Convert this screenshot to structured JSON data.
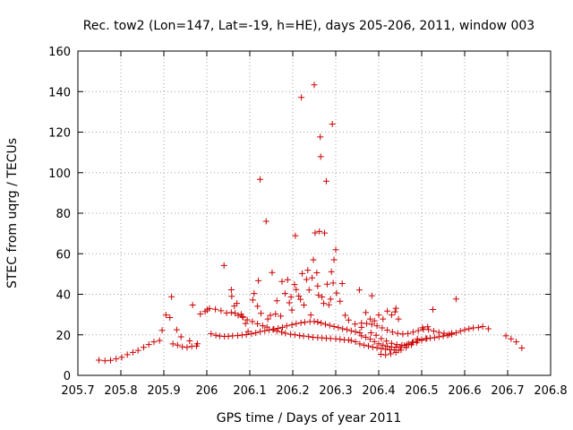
{
  "chart_data": {
    "type": "scatter",
    "title": "Rec. tow2 (Lon=147, Lat=-19, h=HE), days 205-206, 2011, window 003",
    "xlabel": "GPS time / Days of year 2011",
    "ylabel": "STEC from uqrg / TECUs",
    "xlim": [
      205.7,
      206.8
    ],
    "ylim": [
      0,
      160
    ],
    "grid": true,
    "marker": "+",
    "xticks": [
      205.7,
      205.8,
      205.9,
      206,
      206.1,
      206.2,
      206.3,
      206.4,
      206.5,
      206.6,
      206.7,
      206.8
    ],
    "xtick_labels": [
      "205.7",
      "205.8",
      "205.9",
      "206",
      "206.1",
      "206.2",
      "206.3",
      "206.4",
      "206.5",
      "206.6",
      "206.7",
      "206.8"
    ],
    "yticks": [
      0,
      20,
      40,
      60,
      80,
      100,
      120,
      140,
      160
    ],
    "ytick_labels": [
      "0",
      "20",
      "40",
      "60",
      "80",
      "100",
      "120",
      "140",
      "160"
    ],
    "series": [
      {
        "name": "STEC",
        "color": "#cc0000",
        "points": [
          [
            205.749,
            7.5
          ],
          [
            205.763,
            7.2
          ],
          [
            205.776,
            7.4
          ],
          [
            205.789,
            8.1
          ],
          [
            205.802,
            8.9
          ],
          [
            205.815,
            10.2
          ],
          [
            205.828,
            11.3
          ],
          [
            205.84,
            12.3
          ],
          [
            205.853,
            13.8
          ],
          [
            205.865,
            15.2
          ],
          [
            205.877,
            16.5
          ],
          [
            205.89,
            17.2
          ],
          [
            205.896,
            22.2
          ],
          [
            205.905,
            29.8
          ],
          [
            205.914,
            28.5
          ],
          [
            205.918,
            38.8
          ],
          [
            205.921,
            15.5
          ],
          [
            205.932,
            14.9
          ],
          [
            205.943,
            14.1
          ],
          [
            205.954,
            13.8
          ],
          [
            205.965,
            14.3
          ],
          [
            205.967,
            34.7
          ],
          [
            205.976,
            14.5
          ],
          [
            205.985,
            30.3
          ],
          [
            205.996,
            31.5
          ],
          [
            205.94,
            19.0
          ],
          [
            205.93,
            22.5
          ],
          [
            205.96,
            17.0
          ],
          [
            205.978,
            15.6
          ],
          [
            206.001,
            32.3
          ],
          [
            206.01,
            20.5
          ],
          [
            206.021,
            19.8
          ],
          [
            206.03,
            19.4
          ],
          [
            206.041,
            19.2
          ],
          [
            206.05,
            19.3
          ],
          [
            206.06,
            19.5
          ],
          [
            206.072,
            19.6
          ],
          [
            206.082,
            19.9
          ],
          [
            206.092,
            20.1
          ],
          [
            206.104,
            20.5
          ],
          [
            206.114,
            21.0
          ],
          [
            206.124,
            21.6
          ],
          [
            206.135,
            22.0
          ],
          [
            206.145,
            22.4
          ],
          [
            206.156,
            22.8
          ],
          [
            206.166,
            23.2
          ],
          [
            206.176,
            23.7
          ],
          [
            206.186,
            24.4
          ],
          [
            206.198,
            24.9
          ],
          [
            206.208,
            25.5
          ],
          [
            206.219,
            25.9
          ],
          [
            206.228,
            26.2
          ],
          [
            206.24,
            26.5
          ],
          [
            206.25,
            26.6
          ],
          [
            206.258,
            26.3
          ],
          [
            206.266,
            25.8
          ],
          [
            206.276,
            25.2
          ],
          [
            206.286,
            24.7
          ],
          [
            206.296,
            24.1
          ],
          [
            206.306,
            23.6
          ],
          [
            206.316,
            23.0
          ],
          [
            206.326,
            22.6
          ],
          [
            206.336,
            22.0
          ],
          [
            206.346,
            21.5
          ],
          [
            206.356,
            21.0
          ],
          [
            206.006,
            33.0
          ],
          [
            206.02,
            32.6
          ],
          [
            206.033,
            31.9
          ],
          [
            206.046,
            30.8
          ],
          [
            206.057,
            31.0
          ],
          [
            206.066,
            30.6
          ],
          [
            206.073,
            29.6
          ],
          [
            206.084,
            28.6
          ],
          [
            206.094,
            27.4
          ],
          [
            206.106,
            26.5
          ],
          [
            206.118,
            25.4
          ],
          [
            206.13,
            24.5
          ],
          [
            206.14,
            23.8
          ],
          [
            206.154,
            22.6
          ],
          [
            206.163,
            21.8
          ],
          [
            206.174,
            21.3
          ],
          [
            206.183,
            20.8
          ],
          [
            206.195,
            20.3
          ],
          [
            206.205,
            20.0
          ],
          [
            206.216,
            19.6
          ],
          [
            206.225,
            19.4
          ],
          [
            206.237,
            19.1
          ],
          [
            206.247,
            18.8
          ],
          [
            206.258,
            18.6
          ],
          [
            206.268,
            18.5
          ],
          [
            206.278,
            18.3
          ],
          [
            206.288,
            18.2
          ],
          [
            206.3,
            18.0
          ],
          [
            206.31,
            17.8
          ],
          [
            206.32,
            17.5
          ],
          [
            206.33,
            17.4
          ],
          [
            206.04,
            54.2
          ],
          [
            206.058,
            39.0
          ],
          [
            206.057,
            42.2
          ],
          [
            206.064,
            34.2
          ],
          [
            206.07,
            35.5
          ],
          [
            206.08,
            30.1
          ],
          [
            206.083,
            29.0
          ],
          [
            206.09,
            25.6
          ],
          [
            206.096,
            21.6
          ],
          [
            206.107,
            37.2
          ],
          [
            206.11,
            40.4
          ],
          [
            206.118,
            34.1
          ],
          [
            206.12,
            46.7
          ],
          [
            206.124,
            96.7
          ],
          [
            206.126,
            30.6
          ],
          [
            206.138,
            76.0
          ],
          [
            206.142,
            27.8
          ],
          [
            206.148,
            29.6
          ],
          [
            206.152,
            50.7
          ],
          [
            206.16,
            30.3
          ],
          [
            206.163,
            36.8
          ],
          [
            206.172,
            29.2
          ],
          [
            206.175,
            46.3
          ],
          [
            206.182,
            40.4
          ],
          [
            206.188,
            47.2
          ],
          [
            206.192,
            35.8
          ],
          [
            206.196,
            38.7
          ],
          [
            206.198,
            32.2
          ],
          [
            206.204,
            44.8
          ],
          [
            206.206,
            68.9
          ],
          [
            206.208,
            42.3
          ],
          [
            206.214,
            39.1
          ],
          [
            206.218,
            37.5
          ],
          [
            206.22,
            137.1
          ],
          [
            206.222,
            50.2
          ],
          [
            206.226,
            34.7
          ],
          [
            206.232,
            47.3
          ],
          [
            206.235,
            51.9
          ],
          [
            206.238,
            42.1
          ],
          [
            206.242,
            29.8
          ],
          [
            206.245,
            48.1
          ],
          [
            206.248,
            57.0
          ],
          [
            206.25,
            143.3
          ],
          [
            206.252,
            70.3
          ],
          [
            206.256,
            50.6
          ],
          [
            206.258,
            44.1
          ],
          [
            206.26,
            39.6
          ],
          [
            206.262,
            71.0
          ],
          [
            206.264,
            117.6
          ],
          [
            206.265,
            107.9
          ],
          [
            206.268,
            38.7
          ],
          [
            206.272,
            35.5
          ],
          [
            206.274,
            70.2
          ],
          [
            206.278,
            95.8
          ],
          [
            206.28,
            45.0
          ],
          [
            206.284,
            34.8
          ],
          [
            206.288,
            37.6
          ],
          [
            206.29,
            51.1
          ],
          [
            206.292,
            124.0
          ],
          [
            206.294,
            45.6
          ],
          [
            206.296,
            57.0
          ],
          [
            206.3,
            62.0
          ],
          [
            206.302,
            40.6
          ],
          [
            206.31,
            36.6
          ],
          [
            206.315,
            45.3
          ],
          [
            206.322,
            29.6
          ],
          [
            206.33,
            27.3
          ],
          [
            206.345,
            25.3
          ],
          [
            206.355,
            42.1
          ],
          [
            206.36,
            23.7
          ],
          [
            206.37,
            31.0
          ],
          [
            206.38,
            27.8
          ],
          [
            206.384,
            39.3
          ],
          [
            206.39,
            26.9
          ],
          [
            206.4,
            29.8
          ],
          [
            206.41,
            27.8
          ],
          [
            206.42,
            31.7
          ],
          [
            206.43,
            29.8
          ],
          [
            206.438,
            31.3
          ],
          [
            206.44,
            33.1
          ],
          [
            206.446,
            27.8
          ],
          [
            206.336,
            17.2
          ],
          [
            206.346,
            16.6
          ],
          [
            206.356,
            15.5
          ],
          [
            206.366,
            14.9
          ],
          [
            206.376,
            14.5
          ],
          [
            206.386,
            13.9
          ],
          [
            206.396,
            13.6
          ],
          [
            206.406,
            13.2
          ],
          [
            206.416,
            12.9
          ],
          [
            206.426,
            12.6
          ],
          [
            206.436,
            12.5
          ],
          [
            206.446,
            12.4
          ],
          [
            206.36,
            19.5
          ],
          [
            206.37,
            18.8
          ],
          [
            206.38,
            17.9
          ],
          [
            206.39,
            16.7
          ],
          [
            206.4,
            15.6
          ],
          [
            206.41,
            14.9
          ],
          [
            206.42,
            14.3
          ],
          [
            206.43,
            14.0
          ],
          [
            206.44,
            13.9
          ],
          [
            206.45,
            14.1
          ],
          [
            206.46,
            14.8
          ],
          [
            206.47,
            15.5
          ],
          [
            206.48,
            16.4
          ],
          [
            206.49,
            17.1
          ],
          [
            206.5,
            17.7
          ],
          [
            206.51,
            18.2
          ],
          [
            206.52,
            18.4
          ],
          [
            206.53,
            18.6
          ],
          [
            206.54,
            19.0
          ],
          [
            206.55,
            19.4
          ],
          [
            206.56,
            19.8
          ],
          [
            206.57,
            20.3
          ],
          [
            206.58,
            21.0
          ],
          [
            206.59,
            21.8
          ],
          [
            206.6,
            22.5
          ],
          [
            206.61,
            23.0
          ],
          [
            206.62,
            23.4
          ],
          [
            206.632,
            23.6
          ],
          [
            206.642,
            24.1
          ],
          [
            206.655,
            23.0
          ],
          [
            206.405,
            10.4
          ],
          [
            206.416,
            10.1
          ],
          [
            206.428,
            10.6
          ],
          [
            206.44,
            11.3
          ],
          [
            206.452,
            12.5
          ],
          [
            206.464,
            13.7
          ],
          [
            206.476,
            15.1
          ],
          [
            206.488,
            16.2
          ],
          [
            206.5,
            17.3
          ],
          [
            206.512,
            18.1
          ],
          [
            206.36,
            25.8
          ],
          [
            206.372,
            25.6
          ],
          [
            206.384,
            25.2
          ],
          [
            206.396,
            24.4
          ],
          [
            206.408,
            23.4
          ],
          [
            206.42,
            22.3
          ],
          [
            206.432,
            21.4
          ],
          [
            206.444,
            20.7
          ],
          [
            206.456,
            20.4
          ],
          [
            206.468,
            20.6
          ],
          [
            206.48,
            21.3
          ],
          [
            206.492,
            22.1
          ],
          [
            206.504,
            22.7
          ],
          [
            206.516,
            22.6
          ],
          [
            206.528,
            21.9
          ],
          [
            206.54,
            21.2
          ],
          [
            206.552,
            20.7
          ],
          [
            206.564,
            20.2
          ],
          [
            206.382,
            21.0
          ],
          [
            206.394,
            19.8
          ],
          [
            206.406,
            18.1
          ],
          [
            206.418,
            16.9
          ],
          [
            206.43,
            15.8
          ],
          [
            206.442,
            15.2
          ],
          [
            206.454,
            14.9
          ],
          [
            206.466,
            15.3
          ],
          [
            206.478,
            16.2
          ],
          [
            206.49,
            18.0
          ],
          [
            206.502,
            23.5
          ],
          [
            206.514,
            24.0
          ],
          [
            206.526,
            32.5
          ],
          [
            206.58,
            37.7
          ],
          [
            206.57,
            20.8
          ],
          [
            206.696,
            19.5
          ],
          [
            206.708,
            18.0
          ],
          [
            206.72,
            16.5
          ],
          [
            206.733,
            13.5
          ]
        ]
      }
    ]
  }
}
